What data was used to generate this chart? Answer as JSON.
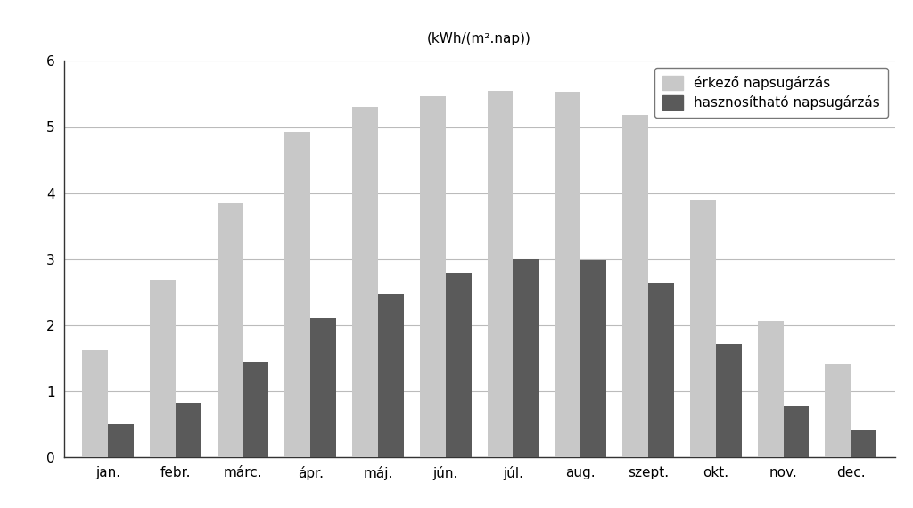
{
  "months": [
    "jan.",
    "febr.",
    "márc.",
    "ápr.",
    "máj.",
    "jún.",
    "júl.",
    "aug.",
    "szept.",
    "okt.",
    "nov.",
    "dec."
  ],
  "erkező": [
    1.62,
    2.68,
    3.85,
    4.92,
    5.3,
    5.47,
    5.55,
    5.53,
    5.18,
    3.9,
    2.07,
    1.42
  ],
  "hasznosítható": [
    0.5,
    0.82,
    1.45,
    2.1,
    2.47,
    2.8,
    3.0,
    2.98,
    2.63,
    1.72,
    0.77,
    0.42
  ],
  "color_erkező": "#c8c8c8",
  "color_hasznosítható": "#5a5a5a",
  "ylabel": "(kWh/(m².nap))",
  "ylim": [
    0,
    6
  ],
  "yticks": [
    0,
    1,
    2,
    3,
    4,
    5,
    6
  ],
  "legend_erkező": "érkező napsugárzás",
  "legend_hasznosítható": "hasznosítható napsugárzás",
  "bar_width": 0.38,
  "figsize": [
    10.24,
    5.7
  ],
  "dpi": 100,
  "background_color": "#ffffff",
  "grid_color": "#bbbbbb",
  "fontsize": 11
}
